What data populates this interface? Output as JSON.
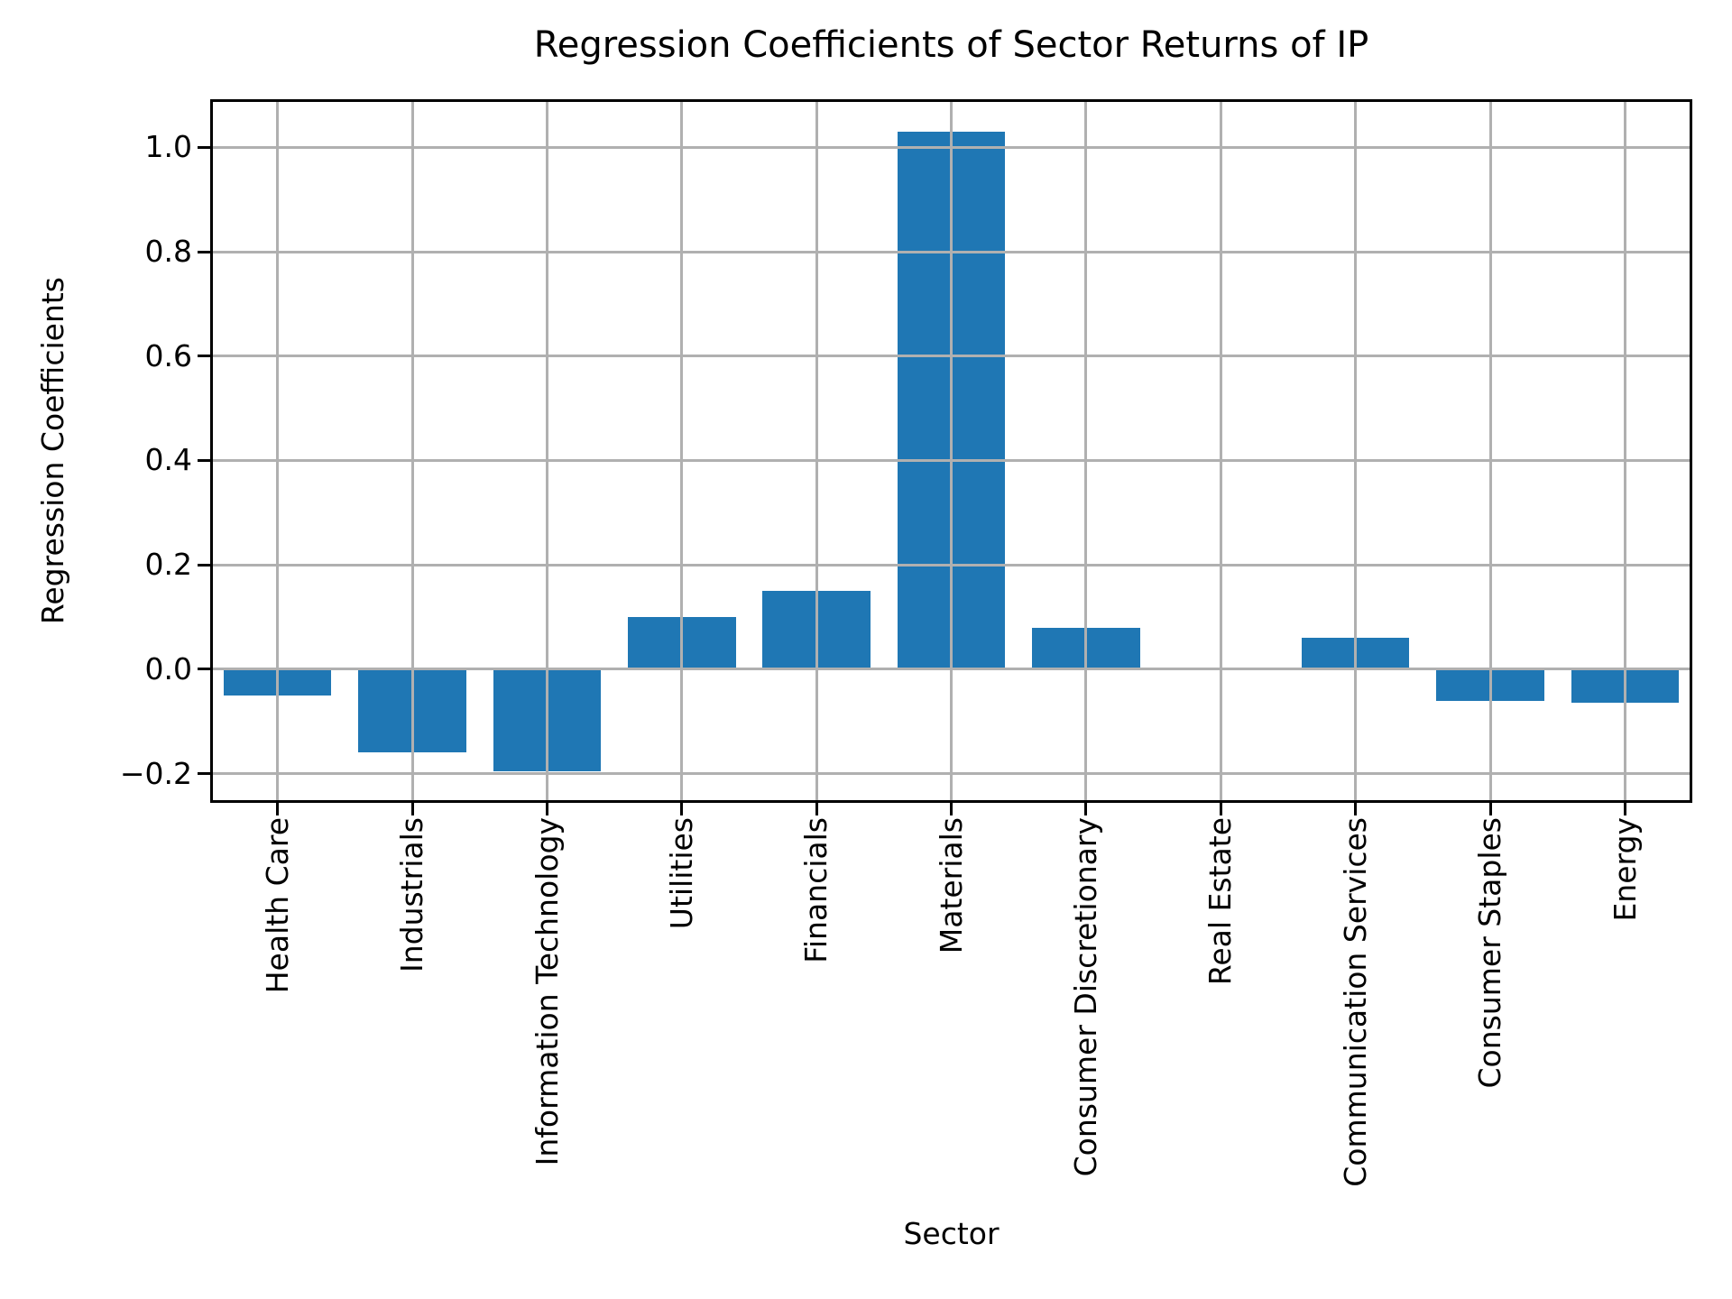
{
  "figure": {
    "title": "Regression Coefficients of Sector Returns of IP",
    "xlabel": "Sector",
    "ylabel": "Regression Coefficients"
  },
  "chart_data": {
    "type": "bar",
    "title": "Regression Coefficients of Sector Returns of IP",
    "xlabel": "Sector",
    "ylabel": "Regression Coefficients",
    "categories": [
      "Health Care",
      "Industrials",
      "Information Technology",
      "Utilities",
      "Financials",
      "Materials",
      "Consumer Discretionary",
      "Real Estate",
      "Communication Services",
      "Consumer Staples",
      "Energy"
    ],
    "values": [
      -0.05,
      -0.16,
      -0.195,
      0.1,
      0.15,
      1.03,
      0.08,
      0.0,
      0.06,
      -0.06,
      -0.065
    ],
    "yticks": [
      1.0,
      0.8,
      0.6,
      0.4,
      0.2,
      0.0,
      -0.2
    ],
    "ytick_labels": [
      "1.0",
      "0.8",
      "0.6",
      "0.4",
      "0.2",
      "0.0",
      "−0.2"
    ],
    "ylim": [
      -0.256,
      1.092
    ],
    "xtick_rotation": 90,
    "grid": true,
    "grid_above_bars": true,
    "legend": "none",
    "bar_color": "#1f77b4",
    "grid_color": "#b0b0b0",
    "spine_color": "#000000",
    "bar_width_fraction": 0.8
  }
}
